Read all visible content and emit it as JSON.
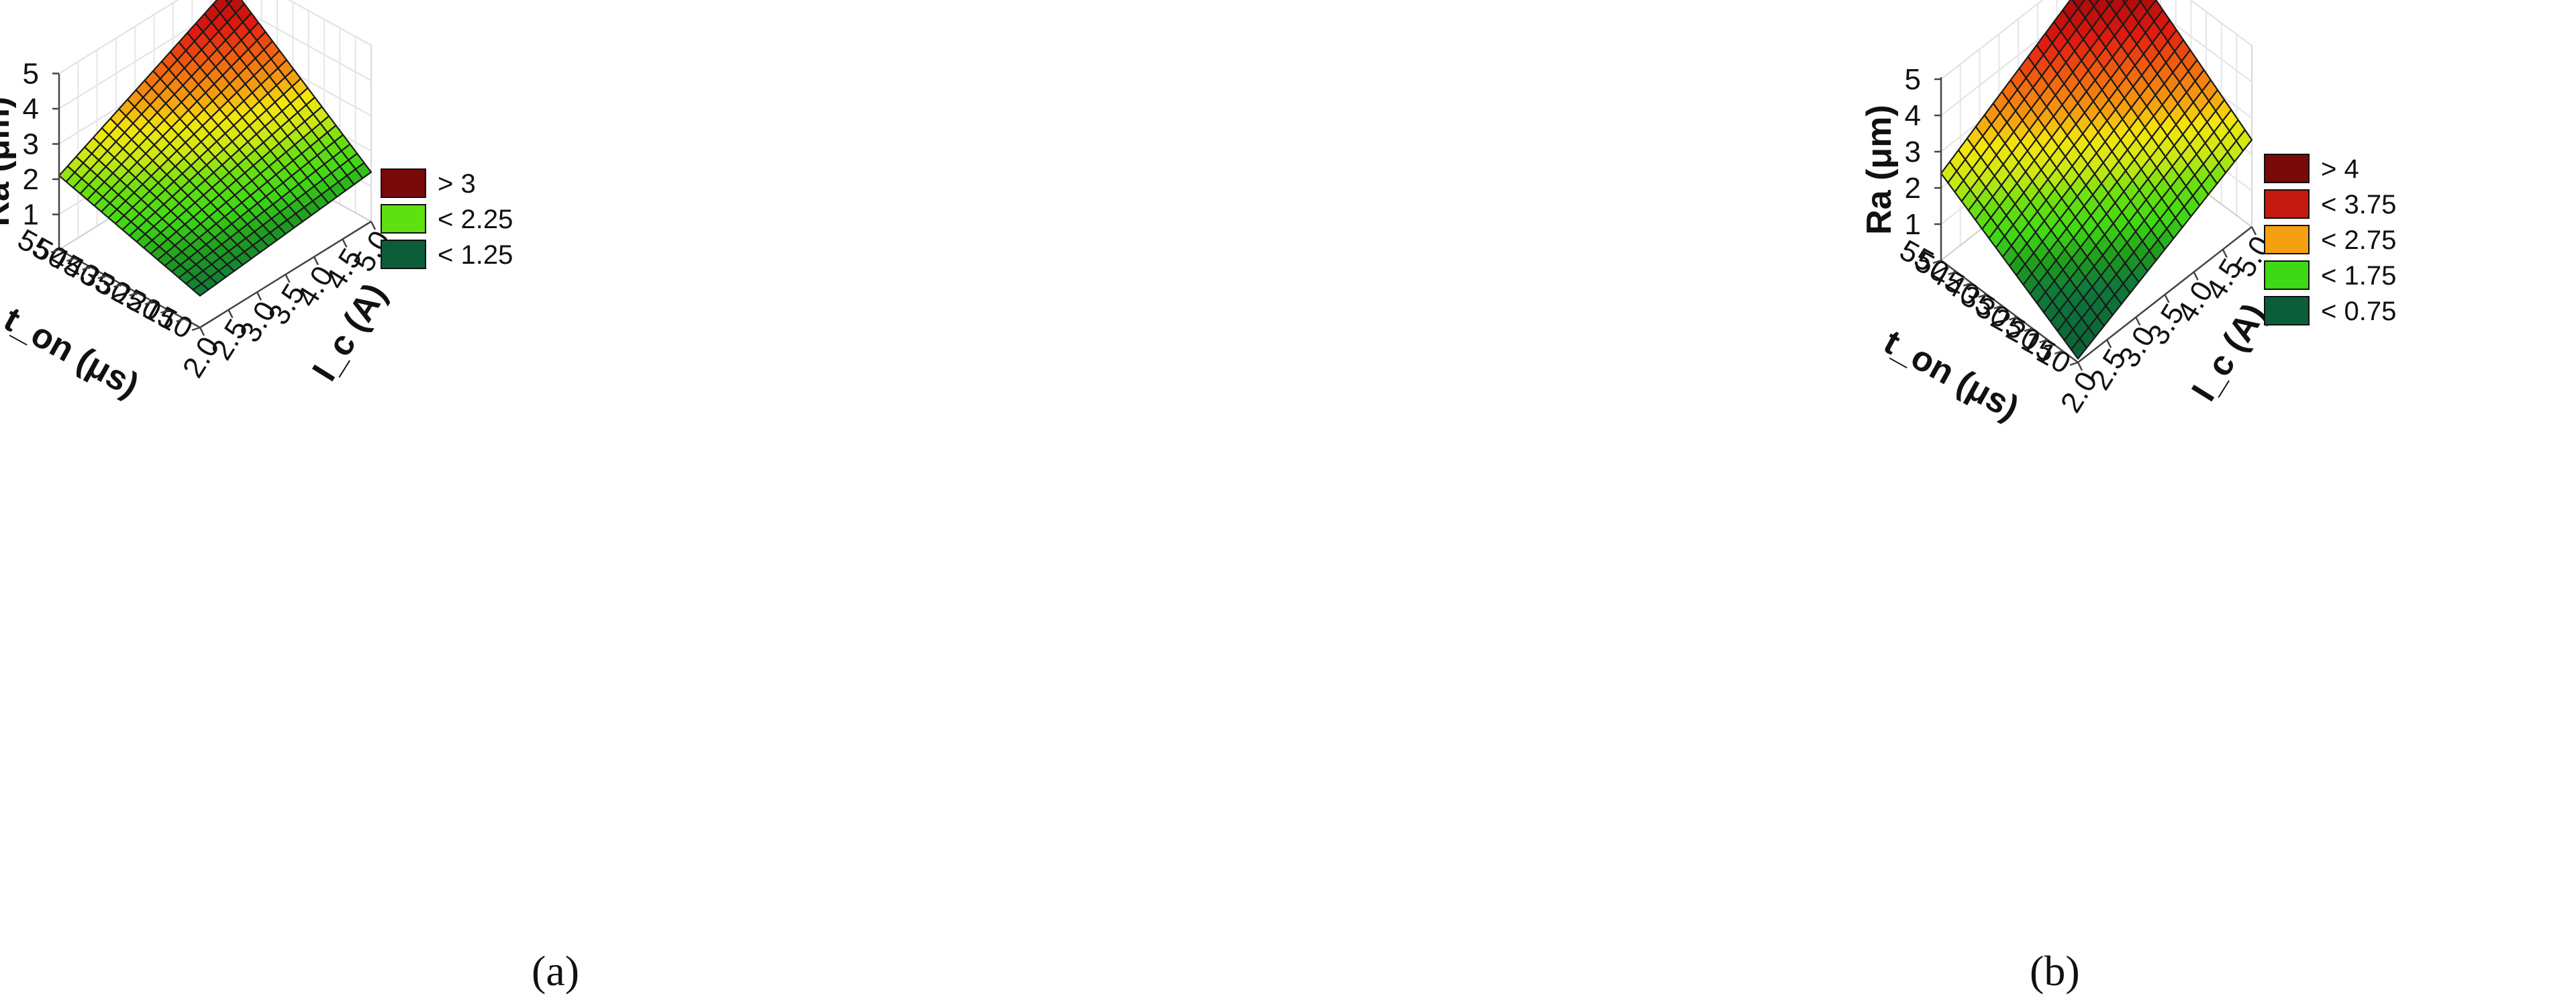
{
  "chart_data": [
    {
      "type": "surface",
      "panel_label": "(a)",
      "zlabel": "Ra (μm)",
      "xlabel": "t_on (μs)",
      "ylabel": "I_c (A)",
      "x_ticks": [
        "10",
        "15",
        "20",
        "25",
        "30",
        "35",
        "40",
        "45",
        "50",
        "55"
      ],
      "y_ticks": [
        "2.0",
        "2.5",
        "3.0",
        "3.5",
        "4.0",
        "4.5",
        "5.0"
      ],
      "z_ticks": [
        "1",
        "2",
        "3",
        "4",
        "5"
      ],
      "x_range": [
        10,
        55
      ],
      "y_range": [
        2.0,
        5.0
      ],
      "z_range": [
        0,
        5
      ],
      "corners": {
        "ton10_ic2": 0.9,
        "ton55_ic2": 2.1,
        "ton10_ic5": 1.4,
        "ton55_ic5": 4.5
      },
      "legend": [
        {
          "label": "> 3",
          "color": "#7a0a0a"
        },
        {
          "label": "< 2.25",
          "color": "#5fe00f"
        },
        {
          "label": "< 1.25",
          "color": "#0b5e3a"
        }
      ]
    },
    {
      "type": "surface",
      "panel_label": "(b)",
      "zlabel": "Ra (μm)",
      "xlabel": "t_on (μs)",
      "ylabel": "I_c (A)",
      "x_ticks": [
        "10",
        "15",
        "20",
        "25",
        "30",
        "35",
        "40",
        "45",
        "50",
        "55"
      ],
      "y_ticks": [
        "2.0",
        "2.5",
        "3.0",
        "3.5",
        "4.0",
        "4.5",
        "5.0"
      ],
      "z_ticks": [
        "1",
        "2",
        "3",
        "4",
        "5"
      ],
      "x_range": [
        10,
        55
      ],
      "y_range": [
        2.0,
        5.0
      ],
      "z_range": [
        0,
        5
      ],
      "corners": {
        "ton10_ic2": 0.1,
        "ton55_ic2": 2.4,
        "ton10_ic5": 2.4,
        "ton55_ic5": 5.1
      },
      "legend": [
        {
          "label": "> 4",
          "color": "#7a0a0a"
        },
        {
          "label": "< 3.75",
          "color": "#c41a10"
        },
        {
          "label": "< 2.75",
          "color": "#f5a010"
        },
        {
          "label": "< 1.75",
          "color": "#3ed814"
        },
        {
          "label": "< 0.75",
          "color": "#0b5e3a"
        }
      ]
    }
  ]
}
